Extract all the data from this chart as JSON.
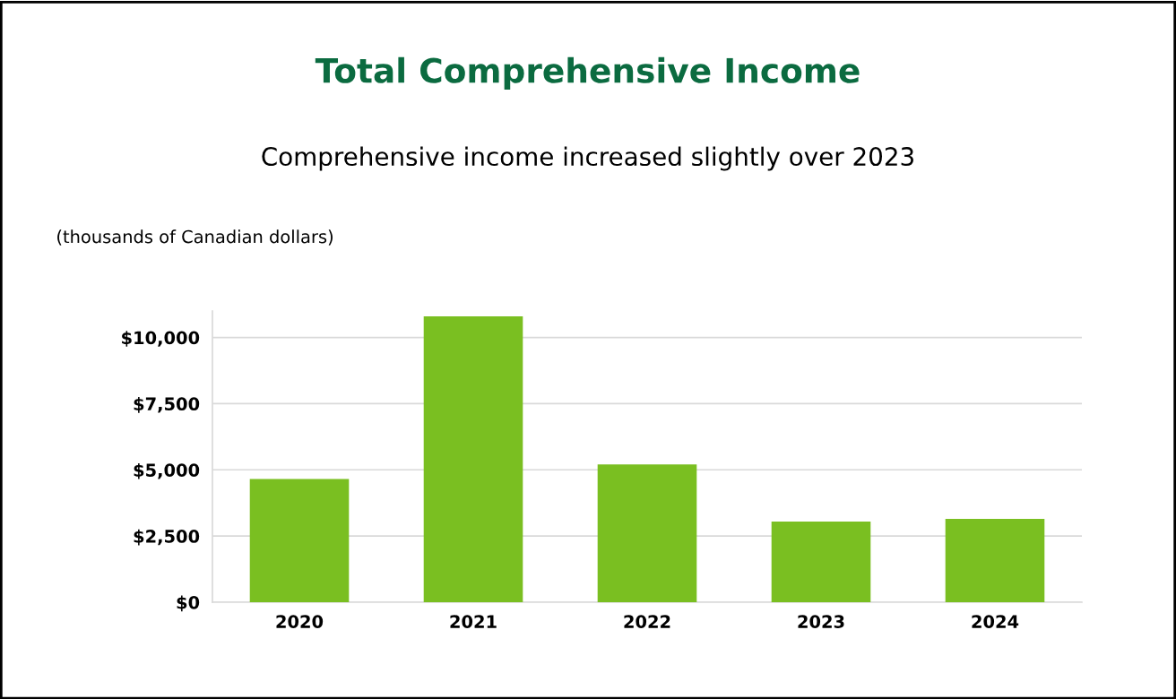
{
  "chart_data": {
    "type": "bar",
    "title": "Total Comprehensive Income",
    "subtitle": "Comprehensive income increased slightly over 2023",
    "ylabel": "(thousands of Canadian dollars)",
    "categories": [
      "2020",
      "2021",
      "2022",
      "2023",
      "2024"
    ],
    "values": [
      4650,
      10800,
      5200,
      3050,
      3150
    ],
    "color": "#7abf21",
    "ylim": [
      0,
      11000
    ],
    "yticks": [
      {
        "value": 0,
        "label": "$0"
      },
      {
        "value": 2500,
        "label": "$2,500"
      },
      {
        "value": 5000,
        "label": "$5,000"
      },
      {
        "value": 7500,
        "label": "$7,500"
      },
      {
        "value": 10000,
        "label": "$10,000"
      }
    ],
    "grid": "y",
    "legend": false
  }
}
